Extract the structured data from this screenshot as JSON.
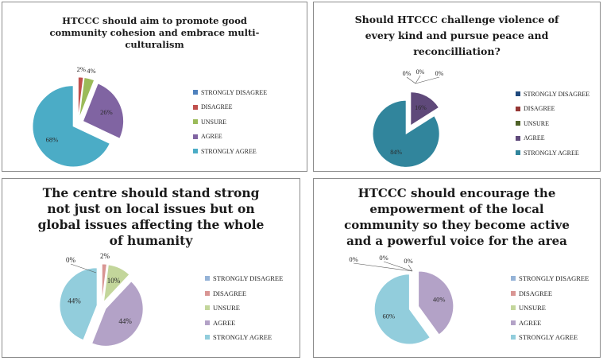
{
  "chart_data": [
    {
      "type": "pie",
      "title_lines": [
        "HTCCC should aim to promote good",
        "community cohesion and embrace multi-",
        "culturalism"
      ],
      "categories": [
        "STRONGLY DISAGREE",
        "DISAGREE",
        "UNSURE",
        "AGREE",
        "STRONGLY AGREE"
      ],
      "values": [
        0,
        2,
        4,
        26,
        68
      ],
      "labels": [
        "",
        "2%",
        "4%",
        "26%",
        "68%"
      ],
      "exploded": true,
      "legend_position": "right"
    },
    {
      "type": "pie",
      "title_lines": [
        "Should HTCCC challenge violence of",
        "every kind and pursue peace and",
        "reconcilliation?"
      ],
      "categories": [
        "STRONGLY DISAGREE",
        "DISAGREE",
        "UNSURE",
        "AGREE",
        "STRONGLY AGREE"
      ],
      "values": [
        0,
        0,
        0,
        16,
        84
      ],
      "labels": [
        "0%",
        "0%",
        "0%",
        "16%",
        "84%"
      ],
      "exploded": true,
      "legend_position": "right"
    },
    {
      "type": "pie",
      "title_lines": [
        "The centre should stand strong",
        "not just on local issues but on",
        "global issues affecting the whole",
        "of humanity"
      ],
      "categories": [
        "STRONGLY DISAGREE",
        "DISAGREE",
        "UNSURE",
        "AGREE",
        "STRONGLY AGREE"
      ],
      "values": [
        0,
        2,
        10,
        44,
        44
      ],
      "labels": [
        "0%",
        "2%",
        "10%",
        "44%",
        "44%"
      ],
      "exploded": true,
      "legend_position": "right"
    },
    {
      "type": "pie",
      "title_lines": [
        "HTCCC should encourage the",
        "empowerment of the local",
        "community so they become active",
        "and a powerful voice for the area"
      ],
      "categories": [
        "STRONGLY DISAGREE",
        "DISAGREE",
        "UNSURE",
        "AGREE",
        "STRONGLY AGREE"
      ],
      "values": [
        0,
        0,
        0,
        40,
        60
      ],
      "labels": [
        "0%",
        "0%",
        "0%",
        "40%",
        "60%"
      ],
      "exploded": true,
      "legend_position": "right"
    }
  ],
  "colors": {
    "light": [
      "#4f81bd",
      "#c0504d",
      "#9bbb59",
      "#8064a2",
      "#4bacc6"
    ],
    "dark": [
      "#1f497d",
      "#953735",
      "#4f6228",
      "#5f497a",
      "#31859c"
    ],
    "pastel": [
      "#95b3d7",
      "#d99694",
      "#c3d69b",
      "#b3a2c7",
      "#92cddc"
    ]
  }
}
